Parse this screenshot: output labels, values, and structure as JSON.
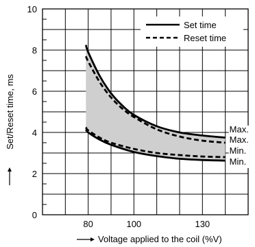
{
  "chart_data": {
    "type": "line",
    "xlabel": "Voltage applied to the coil (%V)",
    "ylabel": "Set/Reset time, ms",
    "xlim": [
      60,
      150
    ],
    "ylim": [
      0,
      10
    ],
    "x_ticks": [
      80,
      100,
      130
    ],
    "y_ticks": [
      0,
      2,
      4,
      6,
      8,
      10
    ],
    "grid": true,
    "legend_position": "top-right",
    "legend": [
      {
        "label": "Set time",
        "style": "solid"
      },
      {
        "label": "Reset time",
        "style": "dashed"
      }
    ],
    "series": [
      {
        "name": "Set time",
        "bound": "Max.",
        "style": "solid",
        "x": [
          79,
          80,
          85,
          90,
          95,
          100,
          110,
          120,
          130,
          140
        ],
        "y": [
          8.25,
          7.9,
          6.75,
          5.9,
          5.3,
          4.85,
          4.3,
          4.0,
          3.85,
          3.75
        ]
      },
      {
        "name": "Reset time",
        "bound": "Max.",
        "style": "dashed",
        "x": [
          79,
          80,
          85,
          90,
          95,
          100,
          110,
          120,
          130,
          140
        ],
        "y": [
          7.7,
          7.45,
          6.45,
          5.7,
          5.15,
          4.75,
          4.15,
          3.8,
          3.6,
          3.5
        ]
      },
      {
        "name": "Reset time",
        "bound": "Min.",
        "style": "dashed",
        "x": [
          79,
          80,
          85,
          90,
          100,
          110,
          120,
          130,
          140
        ],
        "y": [
          4.25,
          4.1,
          3.75,
          3.5,
          3.2,
          3.0,
          2.9,
          2.83,
          2.8
        ]
      },
      {
        "name": "Set time",
        "bound": "Min.",
        "style": "solid",
        "x": [
          79,
          80,
          85,
          90,
          100,
          110,
          120,
          130,
          140
        ],
        "y": [
          4.15,
          4.0,
          3.65,
          3.4,
          3.05,
          2.85,
          2.72,
          2.66,
          2.63
        ]
      }
    ],
    "end_labels": [
      "Max.",
      "Max.",
      "Min.",
      "Min."
    ]
  }
}
